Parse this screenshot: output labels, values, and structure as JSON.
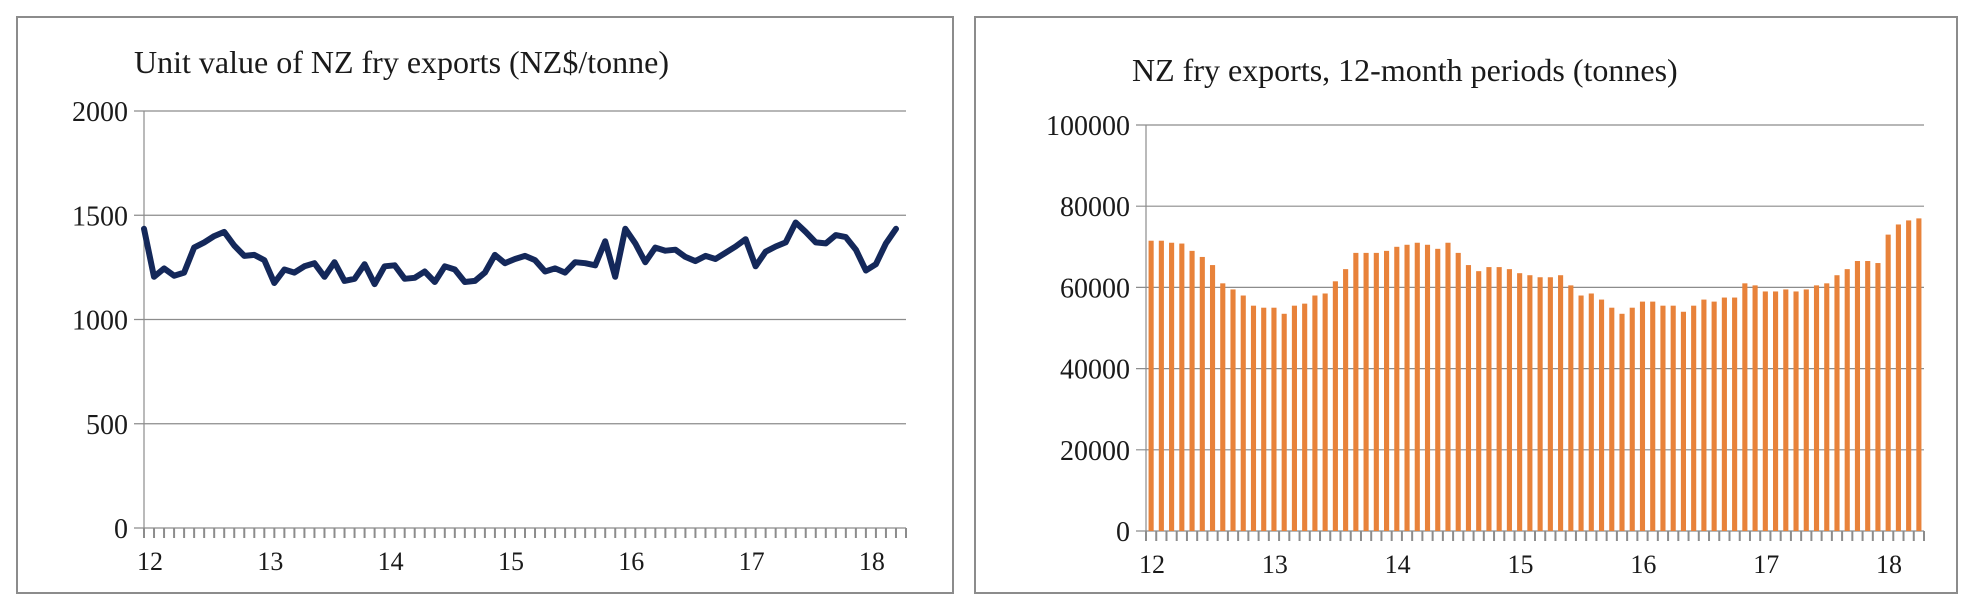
{
  "chart_data": [
    {
      "type": "line",
      "title": "Unit value of NZ fry exports (NZ$/tonne)",
      "xlabel": "",
      "ylabel": "",
      "ylim": [
        0,
        2000
      ],
      "yticks": [
        "0",
        "500",
        "1000",
        "1500",
        "2000"
      ],
      "xtick_labels": [
        "12",
        "13",
        "14",
        "15",
        "16",
        "17",
        "18"
      ],
      "grid": "horizontal",
      "color": "#14285a",
      "series": [
        {
          "values": [
            1435,
            1205,
            1245,
            1210,
            1225,
            1345,
            1370,
            1400,
            1420,
            1355,
            1305,
            1310,
            1285,
            1175,
            1240,
            1225,
            1255,
            1270,
            1205,
            1275,
            1185,
            1195,
            1265,
            1170,
            1255,
            1260,
            1195,
            1200,
            1230,
            1180,
            1255,
            1240,
            1180,
            1185,
            1225,
            1310,
            1270,
            1290,
            1305,
            1285,
            1230,
            1245,
            1225,
            1275,
            1270,
            1260,
            1375,
            1205,
            1435,
            1365,
            1275,
            1345,
            1330,
            1335,
            1300,
            1280,
            1305,
            1290,
            1320,
            1350,
            1385,
            1255,
            1325,
            1350,
            1370,
            1465,
            1420,
            1370,
            1365,
            1405,
            1395,
            1335,
            1235,
            1265,
            1365,
            1435
          ]
        }
      ]
    },
    {
      "type": "bar",
      "title": "NZ fry exports, 12-month periods (tonnes)",
      "xlabel": "",
      "ylabel": "",
      "ylim": [
        0,
        100000
      ],
      "yticks": [
        "0",
        "20000",
        "40000",
        "60000",
        "80000",
        "100000"
      ],
      "xtick_labels": [
        "12",
        "13",
        "14",
        "15",
        "16",
        "17",
        "18"
      ],
      "grid": "horizontal",
      "color": "#e8823a",
      "series": [
        {
          "values": [
            71500,
            71500,
            71000,
            70800,
            69000,
            67500,
            65500,
            61000,
            59500,
            58000,
            55500,
            55000,
            55000,
            53500,
            55500,
            56000,
            58000,
            58500,
            61500,
            64500,
            68500,
            68500,
            68500,
            69000,
            70000,
            70500,
            71000,
            70500,
            69500,
            71000,
            68500,
            65500,
            64000,
            65000,
            65000,
            64500,
            63500,
            63000,
            62500,
            62500,
            63000,
            60500,
            58000,
            58500,
            57000,
            55000,
            53500,
            55000,
            56500,
            56500,
            55500,
            55500,
            54000,
            55500,
            57000,
            56500,
            57500,
            57500,
            61000,
            60500,
            59000,
            59000,
            59500,
            59000,
            59500,
            60500,
            61000,
            63000,
            64500,
            66500,
            66500,
            66000,
            73000,
            75500,
            76500,
            77000
          ]
        }
      ]
    }
  ]
}
